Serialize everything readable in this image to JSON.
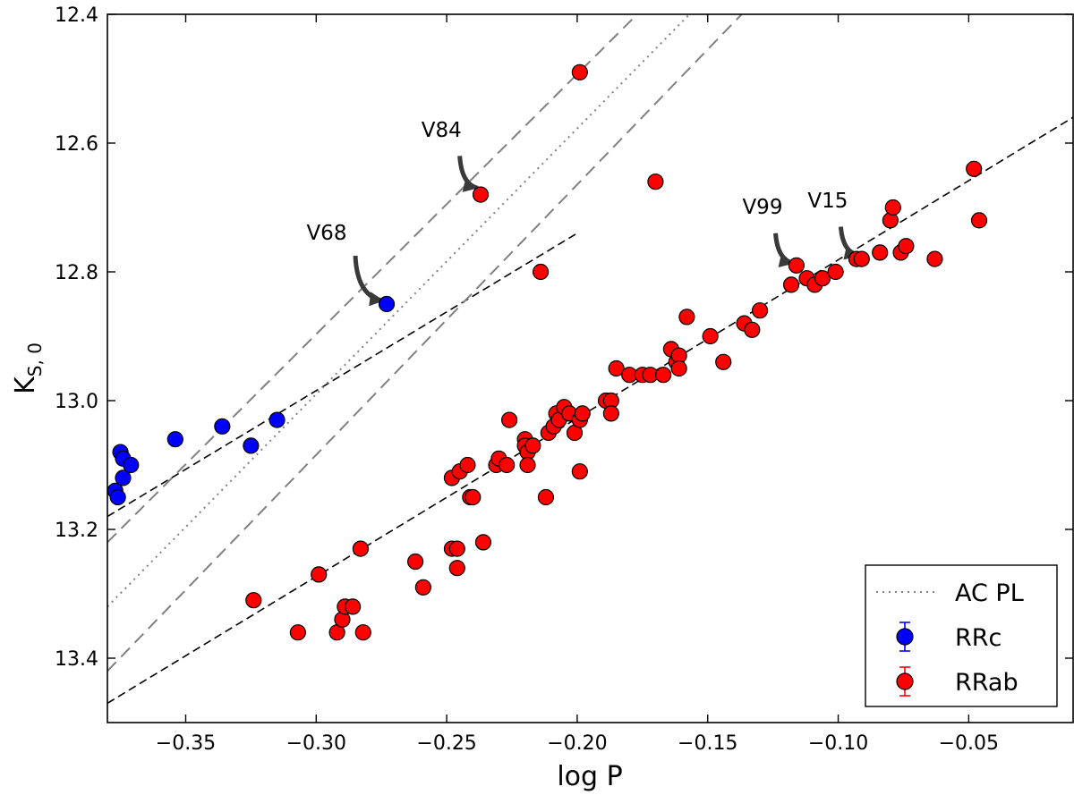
{
  "chart_data": {
    "type": "scatter",
    "xlabel": "log P",
    "ylabel": "K",
    "ylabel_sub": "S, 0",
    "xlim": [
      -0.38,
      -0.01
    ],
    "ylim": [
      13.5,
      12.4
    ],
    "y_inverted": true,
    "x_ticks": [
      -0.35,
      -0.3,
      -0.25,
      -0.2,
      -0.15,
      -0.1,
      -0.05
    ],
    "x_tick_labels": [
      "−0.35",
      "−0.30",
      "−0.25",
      "−0.20",
      "−0.15",
      "−0.10",
      "−0.05"
    ],
    "y_ticks": [
      12.4,
      12.6,
      12.8,
      13.0,
      13.2,
      13.4
    ],
    "y_tick_labels": [
      "12.4",
      "12.6",
      "12.8",
      "13.0",
      "13.2",
      "13.4"
    ],
    "series": [
      {
        "name": "RRc",
        "color": "#0000ff",
        "points": [
          [
            -0.377,
            13.14
          ],
          [
            -0.376,
            13.15
          ],
          [
            -0.375,
            13.08
          ],
          [
            -0.374,
            13.09
          ],
          [
            -0.374,
            13.12
          ],
          [
            -0.371,
            13.1
          ],
          [
            -0.354,
            13.06
          ],
          [
            -0.336,
            13.04
          ],
          [
            -0.325,
            13.07
          ],
          [
            -0.315,
            13.03
          ],
          [
            -0.273,
            12.85
          ]
        ]
      },
      {
        "name": "RRab",
        "color": "#ff0000",
        "points": [
          [
            -0.199,
            12.49
          ],
          [
            -0.237,
            12.68
          ],
          [
            -0.17,
            12.66
          ],
          [
            -0.214,
            12.8
          ],
          [
            -0.324,
            13.31
          ],
          [
            -0.307,
            13.36
          ],
          [
            -0.299,
            13.27
          ],
          [
            -0.292,
            13.36
          ],
          [
            -0.29,
            13.34
          ],
          [
            -0.289,
            13.32
          ],
          [
            -0.286,
            13.32
          ],
          [
            -0.283,
            13.23
          ],
          [
            -0.282,
            13.36
          ],
          [
            -0.262,
            13.25
          ],
          [
            -0.259,
            13.29
          ],
          [
            -0.248,
            13.23
          ],
          [
            -0.248,
            13.12
          ],
          [
            -0.246,
            13.23
          ],
          [
            -0.246,
            13.26
          ],
          [
            -0.245,
            13.11
          ],
          [
            -0.242,
            13.1
          ],
          [
            -0.241,
            13.15
          ],
          [
            -0.24,
            13.15
          ],
          [
            -0.236,
            13.22
          ],
          [
            -0.231,
            13.1
          ],
          [
            -0.23,
            13.09
          ],
          [
            -0.227,
            13.1
          ],
          [
            -0.226,
            13.03
          ],
          [
            -0.22,
            13.06
          ],
          [
            -0.22,
            13.07
          ],
          [
            -0.219,
            13.08
          ],
          [
            -0.219,
            13.1
          ],
          [
            -0.217,
            13.07
          ],
          [
            -0.212,
            13.15
          ],
          [
            -0.211,
            13.05
          ],
          [
            -0.209,
            13.04
          ],
          [
            -0.208,
            13.02
          ],
          [
            -0.207,
            13.03
          ],
          [
            -0.205,
            13.01
          ],
          [
            -0.203,
            13.02
          ],
          [
            -0.201,
            13.05
          ],
          [
            -0.199,
            13.11
          ],
          [
            -0.199,
            13.03
          ],
          [
            -0.198,
            13.02
          ],
          [
            -0.189,
            13.0
          ],
          [
            -0.187,
            13.0
          ],
          [
            -0.187,
            13.02
          ],
          [
            -0.185,
            12.95
          ],
          [
            -0.18,
            12.96
          ],
          [
            -0.175,
            12.96
          ],
          [
            -0.172,
            12.96
          ],
          [
            -0.167,
            12.96
          ],
          [
            -0.164,
            12.92
          ],
          [
            -0.162,
            12.94
          ],
          [
            -0.161,
            12.93
          ],
          [
            -0.161,
            12.95
          ],
          [
            -0.158,
            12.87
          ],
          [
            -0.149,
            12.9
          ],
          [
            -0.144,
            12.94
          ],
          [
            -0.136,
            12.88
          ],
          [
            -0.133,
            12.89
          ],
          [
            -0.13,
            12.86
          ],
          [
            -0.118,
            12.82
          ],
          [
            -0.116,
            12.79
          ],
          [
            -0.112,
            12.81
          ],
          [
            -0.109,
            12.82
          ],
          [
            -0.106,
            12.81
          ],
          [
            -0.101,
            12.8
          ],
          [
            -0.093,
            12.78
          ],
          [
            -0.091,
            12.78
          ],
          [
            -0.084,
            12.77
          ],
          [
            -0.08,
            12.72
          ],
          [
            -0.079,
            12.7
          ],
          [
            -0.076,
            12.77
          ],
          [
            -0.074,
            12.76
          ],
          [
            -0.063,
            12.78
          ],
          [
            -0.048,
            12.64
          ],
          [
            -0.046,
            12.72
          ]
        ]
      }
    ],
    "lines": [
      {
        "name": "rrab-fit",
        "style": "dashed",
        "color": "#000000",
        "x": [
          -0.38,
          -0.01
        ],
        "y": [
          13.47,
          12.56
        ]
      },
      {
        "name": "rrc-fit",
        "style": "dashed",
        "color": "#000000",
        "x": [
          -0.38,
          -0.2
        ],
        "y": [
          13.18,
          12.74
        ]
      },
      {
        "name": "ac-upper",
        "style": "dashed",
        "color": "#808080",
        "x": [
          -0.38,
          -0.177
        ],
        "y": [
          13.22,
          12.4
        ]
      },
      {
        "name": "ac-pl",
        "style": "dotted",
        "color": "#808080",
        "x": [
          -0.38,
          -0.157
        ],
        "y": [
          13.32,
          12.4
        ]
      },
      {
        "name": "ac-lower",
        "style": "dashed",
        "color": "#808080",
        "x": [
          -0.38,
          -0.137
        ],
        "y": [
          13.42,
          12.4
        ]
      }
    ],
    "annotations": [
      {
        "label": "V68",
        "text_x": -0.296,
        "text_y": 12.75,
        "tip_x": -0.274,
        "tip_y": 12.845,
        "tail_x": -0.285,
        "tail_y": 12.775
      },
      {
        "label": "V84",
        "text_x": -0.252,
        "text_y": 12.59,
        "tip_x": -0.238,
        "tip_y": 12.67,
        "tail_x": -0.245,
        "tail_y": 12.62
      },
      {
        "label": "V99",
        "text_x": -0.129,
        "text_y": 12.71,
        "tip_x": -0.117,
        "tip_y": 12.787,
        "tail_x": -0.124,
        "tail_y": 12.74
      },
      {
        "label": "V15",
        "text_x": -0.104,
        "text_y": 12.7,
        "tip_x": -0.092,
        "tip_y": 12.775,
        "tail_x": -0.099,
        "tail_y": 12.73
      }
    ],
    "legend": {
      "position": "bottom-right",
      "entries": [
        {
          "label": "AC PL",
          "kind": "dotted-line",
          "color": "#808080"
        },
        {
          "label": "RRc",
          "kind": "marker-errorbar",
          "color": "#0000ff"
        },
        {
          "label": "RRab",
          "kind": "marker-errorbar",
          "color": "#ff0000"
        }
      ]
    }
  }
}
